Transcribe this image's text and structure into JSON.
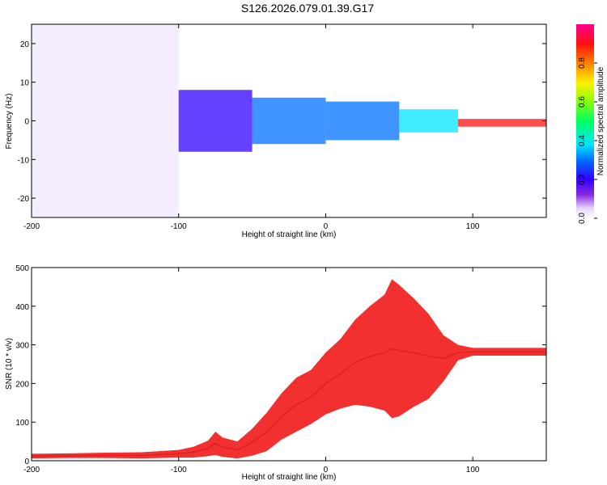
{
  "chart_data": [
    {
      "type": "heatmap",
      "title": "S126.2026.079.01.39.G17",
      "xlabel": "Height of straight line (km)",
      "ylabel": "Frequency (Hz)",
      "xlim": [
        -200,
        150
      ],
      "ylim": [
        -25,
        25
      ],
      "xticks": [
        -200,
        -100,
        0,
        100
      ],
      "yticks": [
        -20,
        -10,
        0,
        10,
        20
      ],
      "colorbar": {
        "label": "Normalized spectral amplitude",
        "range": [
          0,
          1
        ],
        "ticks": [
          "0.0",
          "0.2",
          "0.4",
          "0.6",
          "0.8"
        ]
      },
      "bands": [
        {
          "x_start": -200,
          "x_end": -100,
          "center_hz": 0,
          "half_width_hz": 25,
          "amplitude": 0.1
        },
        {
          "x_start": -100,
          "x_end": -50,
          "center_hz": 0,
          "half_width_hz": 8,
          "amplitude": 0.2
        },
        {
          "x_start": -50,
          "x_end": 0,
          "center_hz": 0,
          "half_width_hz": 6,
          "amplitude": 0.3
        },
        {
          "x_start": 0,
          "x_end": 50,
          "center_hz": 0,
          "half_width_hz": 5,
          "amplitude": 0.3
        },
        {
          "x_start": 50,
          "x_end": 90,
          "center_hz": 0,
          "half_width_hz": 3,
          "amplitude": 0.4
        },
        {
          "x_start": 90,
          "x_end": 150,
          "center_hz": -0.5,
          "half_width_hz": 1,
          "amplitude": 0.95
        }
      ]
    },
    {
      "type": "line",
      "xlabel": "Height of straight line (km)",
      "ylabel": "SNR (10 * v/v)",
      "xlim": [
        -200,
        150
      ],
      "ylim": [
        0,
        500
      ],
      "xticks": [
        -200,
        -100,
        0,
        100
      ],
      "yticks": [
        0,
        100,
        200,
        300,
        400,
        500
      ],
      "color": "#f03030",
      "series": [
        {
          "name": "SNR",
          "x": [
            -200,
            -175,
            -150,
            -125,
            -100,
            -90,
            -80,
            -75,
            -70,
            -60,
            -50,
            -40,
            -30,
            -20,
            -10,
            0,
            10,
            20,
            30,
            40,
            45,
            50,
            60,
            70,
            80,
            90,
            100,
            125,
            150
          ],
          "y": [
            12,
            13,
            14,
            14,
            18,
            22,
            32,
            45,
            35,
            28,
            48,
            75,
            115,
            145,
            165,
            200,
            225,
            255,
            270,
            280,
            290,
            285,
            280,
            270,
            265,
            280,
            282,
            282,
            282
          ],
          "spread": [
            6,
            6,
            7,
            8,
            10,
            14,
            20,
            30,
            25,
            22,
            35,
            50,
            60,
            70,
            70,
            80,
            90,
            110,
            130,
            150,
            180,
            170,
            140,
            110,
            60,
            20,
            10,
            10,
            10
          ]
        }
      ]
    }
  ]
}
